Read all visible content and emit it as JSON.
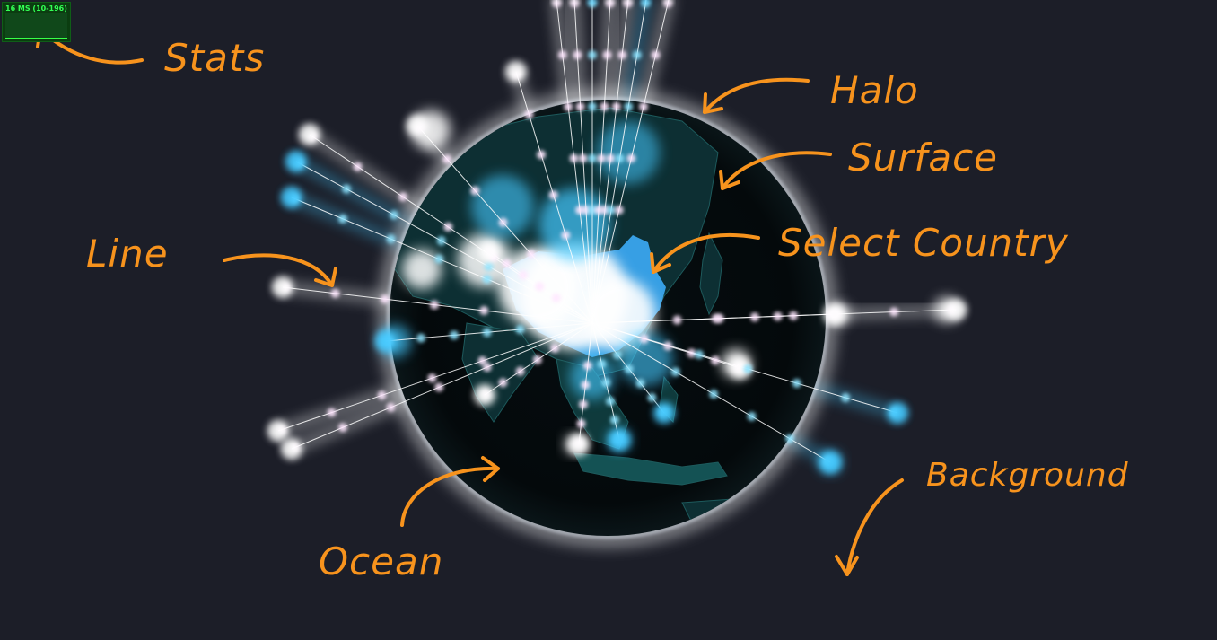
{
  "stats": {
    "text": "16 MS (10-196)"
  },
  "labels": {
    "stats": "Stats",
    "halo": "Halo",
    "surface": "Surface",
    "select_country": "Select Country",
    "line": "Line",
    "ocean": "Ocean",
    "background": "Background"
  },
  "colors": {
    "background": "#1c1e28",
    "ocean": "#04090b",
    "land": "#12484a",
    "selected_country": "#3aa5ee",
    "glow_cyan": "#40c8ff",
    "glow_white": "#ffffff",
    "annotation": "#f7931d",
    "stats_bg": "#0b3d10",
    "stats_text": "#33ff55"
  }
}
